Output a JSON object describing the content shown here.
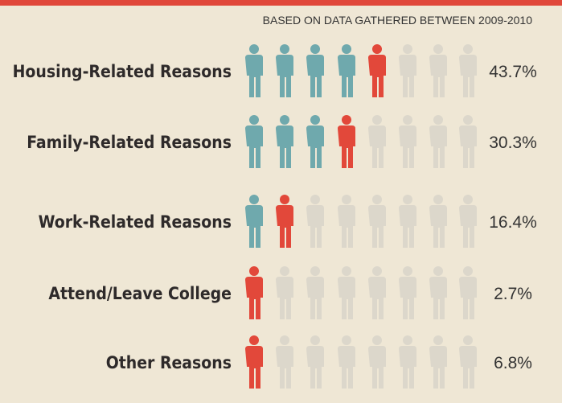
{
  "chart_data": {
    "type": "pictogram",
    "subtitle": "BASED ON DATA GATHERED BETWEEN 2009-2010",
    "categories": [
      "Housing-Related Reasons",
      "Family-Related Reasons",
      "Work-Related Reasons",
      "Attend/Leave College",
      "Other Reasons"
    ],
    "values": [
      43.7,
      30.3,
      16.4,
      2.7,
      6.8
    ],
    "value_labels": [
      "43.7%",
      "30.3%",
      "16.4%",
      "2.7%",
      "6.8%"
    ],
    "colors": {
      "full": "#6fa9ad",
      "partial": "#e2483a",
      "empty": "#dcd7cb"
    }
  }
}
